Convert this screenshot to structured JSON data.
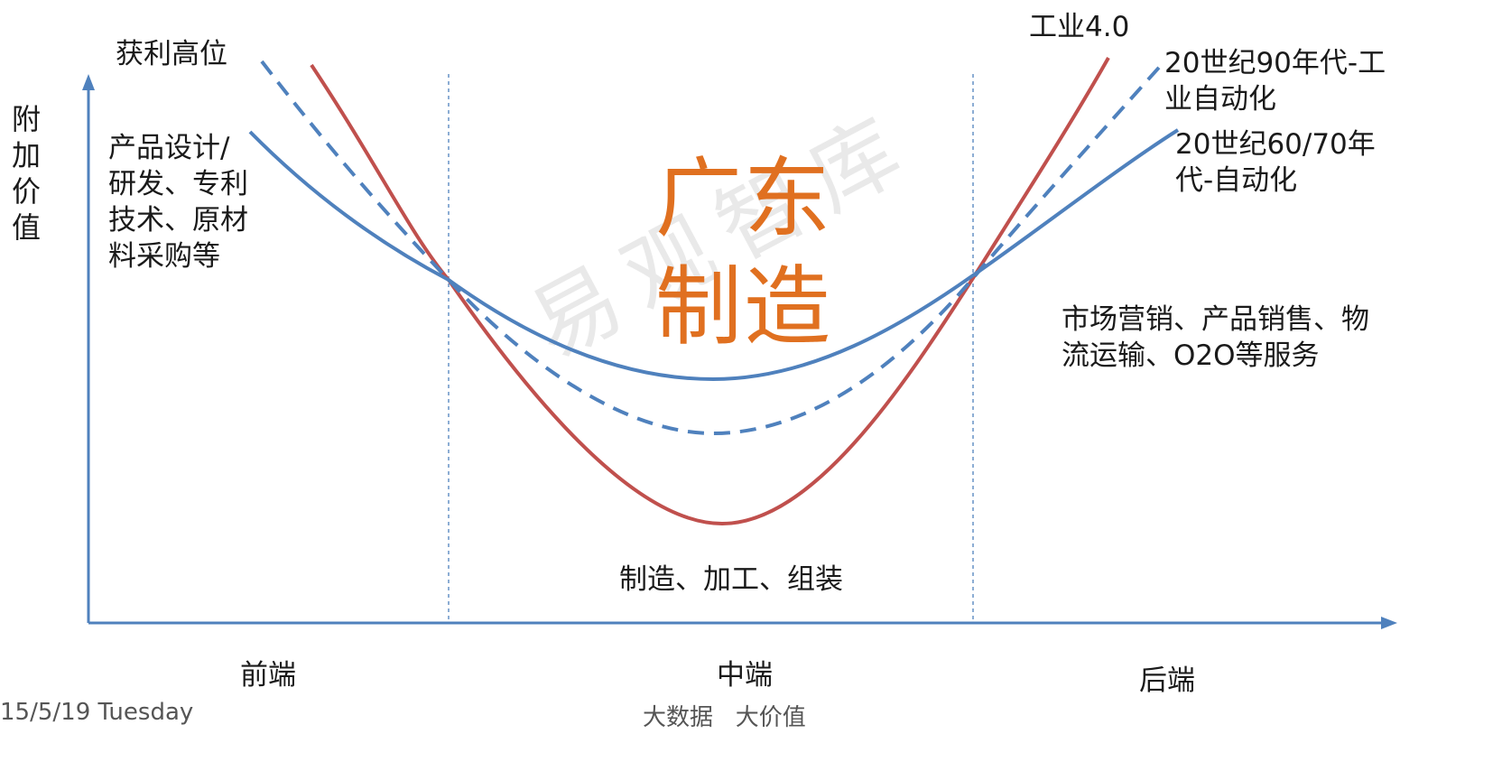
{
  "y_axis_label": "附加价值",
  "x_axis_labels": [
    "前端",
    "中端",
    "后端"
  ],
  "center_title": "广东制造",
  "watermark": "易观智库",
  "annotations": {
    "peak": "获利高位",
    "front": "产品设计/\n研发、专利\n技术、原材\n料采购等",
    "middle": "制造、加工、组装",
    "back": "市场营销、产品销售、物\n流运输、O2O等服务"
  },
  "curves": [
    {
      "label": "工业4.0",
      "color": "#c0504d",
      "style": "solid"
    },
    {
      "label": "20世纪90年代-工\n业自动化",
      "color": "#4f81bd",
      "style": "dashed"
    },
    {
      "label": "20世纪60/70年\n代-自动化",
      "color": "#4f81bd",
      "style": "solid"
    }
  ],
  "footer": {
    "date": "15/5/19 Tuesday",
    "slogan": "大数据   大价值"
  },
  "colors": {
    "axis": "#4f81bd",
    "title": "#e07020",
    "red_curve": "#c0504d",
    "blue_curve": "#4f81bd"
  }
}
